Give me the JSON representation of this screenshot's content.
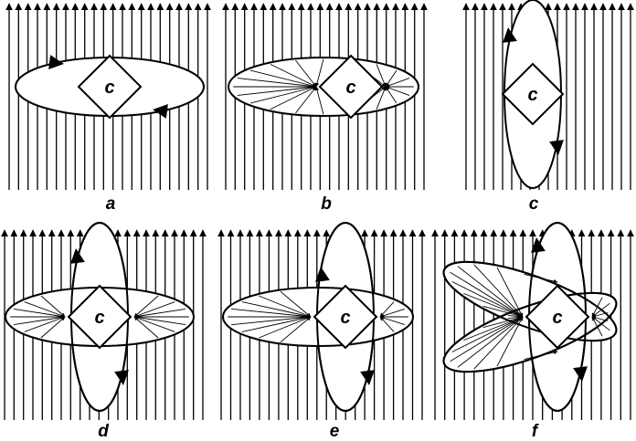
{
  "figure": {
    "center_letter": "c",
    "panels": [
      {
        "id": "a",
        "label": "a"
      },
      {
        "id": "b",
        "label": "b"
      },
      {
        "id": "c",
        "label": "c"
      },
      {
        "id": "d",
        "label": "d"
      },
      {
        "id": "e",
        "label": "e"
      },
      {
        "id": "f",
        "label": "f"
      }
    ]
  }
}
